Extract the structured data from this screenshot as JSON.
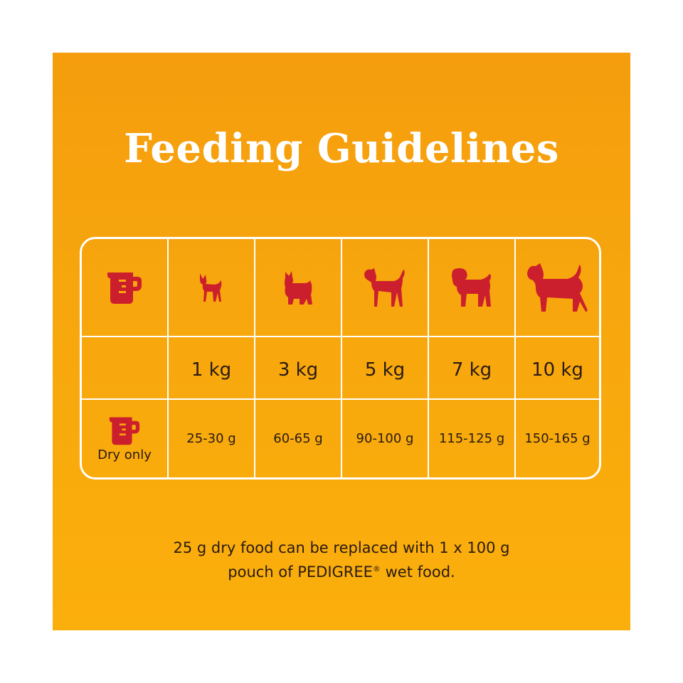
{
  "title": "Feeding Guidelines",
  "table": {
    "header_icons": [
      "measuring-cup-icon",
      "chihuahua-icon",
      "yorkshire-terrier-icon",
      "terrier-icon",
      "shar-pei-icon",
      "jack-russell-icon"
    ],
    "weights": [
      "1 kg",
      "3 kg",
      "5 kg",
      "7 kg",
      "10 kg"
    ],
    "dry_label": "Dry only",
    "amounts": [
      "25-30 g",
      "60-65 g",
      "90-100 g",
      "115-125 g",
      "150-165 g"
    ]
  },
  "footnote": {
    "line1": "25 g dry food can be replaced with 1 x 100 g",
    "line2_prefix": "pouch of PEDIGREE",
    "registered_mark": "®",
    "line2_suffix": " wet food."
  },
  "colors": {
    "background": "#f7a70d",
    "icon_red": "#cc1f2d",
    "text": "#2a1a12",
    "title": "#ffffff"
  }
}
